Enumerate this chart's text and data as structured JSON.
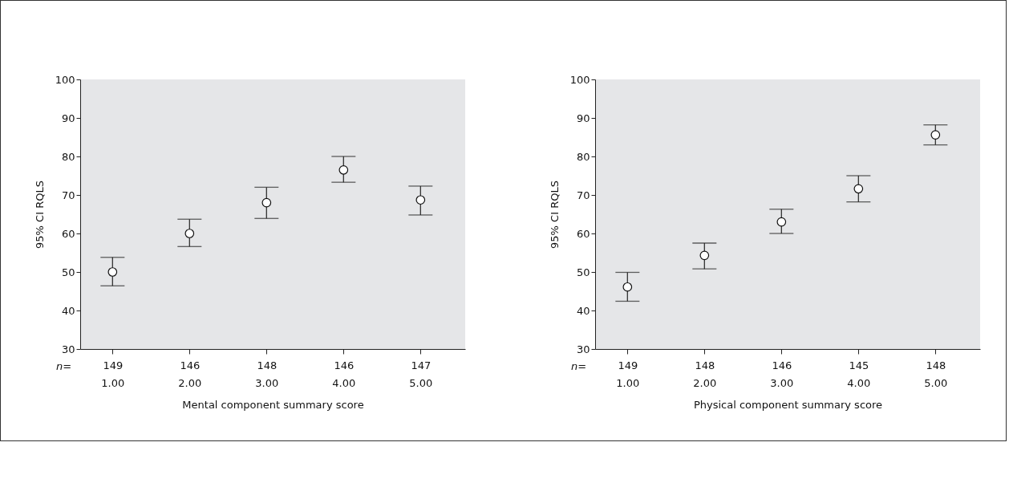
{
  "chart_data": [
    {
      "type": "scatter",
      "categories": [
        "149\n1.00",
        "146\n2.00",
        "148\n3.00",
        "146\n4.00",
        "147\n5.00"
      ],
      "values": [
        50,
        60,
        68,
        76.5,
        68.7
      ],
      "errors": [
        [
          46.4,
          53.8
        ],
        [
          56.6,
          63.7
        ],
        [
          63.9,
          72
        ],
        [
          73.3,
          80
        ],
        [
          64.8,
          72.3
        ]
      ],
      "color": "#ffffff",
      "marker": "circle",
      "xlabel": "Mental component summary score",
      "ylabel": "95% CI RQLS",
      "ylim": [
        30,
        100
      ],
      "yticks": [
        30,
        40,
        50,
        60,
        70,
        80,
        90,
        100
      ],
      "grid": false,
      "annotations": [
        "n="
      ]
    },
    {
      "type": "scatter",
      "categories": [
        "149\n1.00",
        "148\n2.00",
        "146\n3.00",
        "145\n4.00",
        "148\n5.00"
      ],
      "values": [
        46.1,
        54.3,
        63,
        71.6,
        85.6
      ],
      "errors": [
        [
          42.4,
          49.9
        ],
        [
          50.8,
          57.5
        ],
        [
          60,
          66.3
        ],
        [
          68.2,
          75
        ],
        [
          83,
          88.2
        ]
      ],
      "color": "#ffffff",
      "marker": "circle",
      "xlabel": "Physical component summary score",
      "ylabel": "95% CI RQLS",
      "ylim": [
        30,
        100
      ],
      "yticks": [
        30,
        40,
        50,
        60,
        70,
        80,
        90,
        100
      ],
      "grid": false,
      "annotations": [
        "n="
      ]
    }
  ]
}
